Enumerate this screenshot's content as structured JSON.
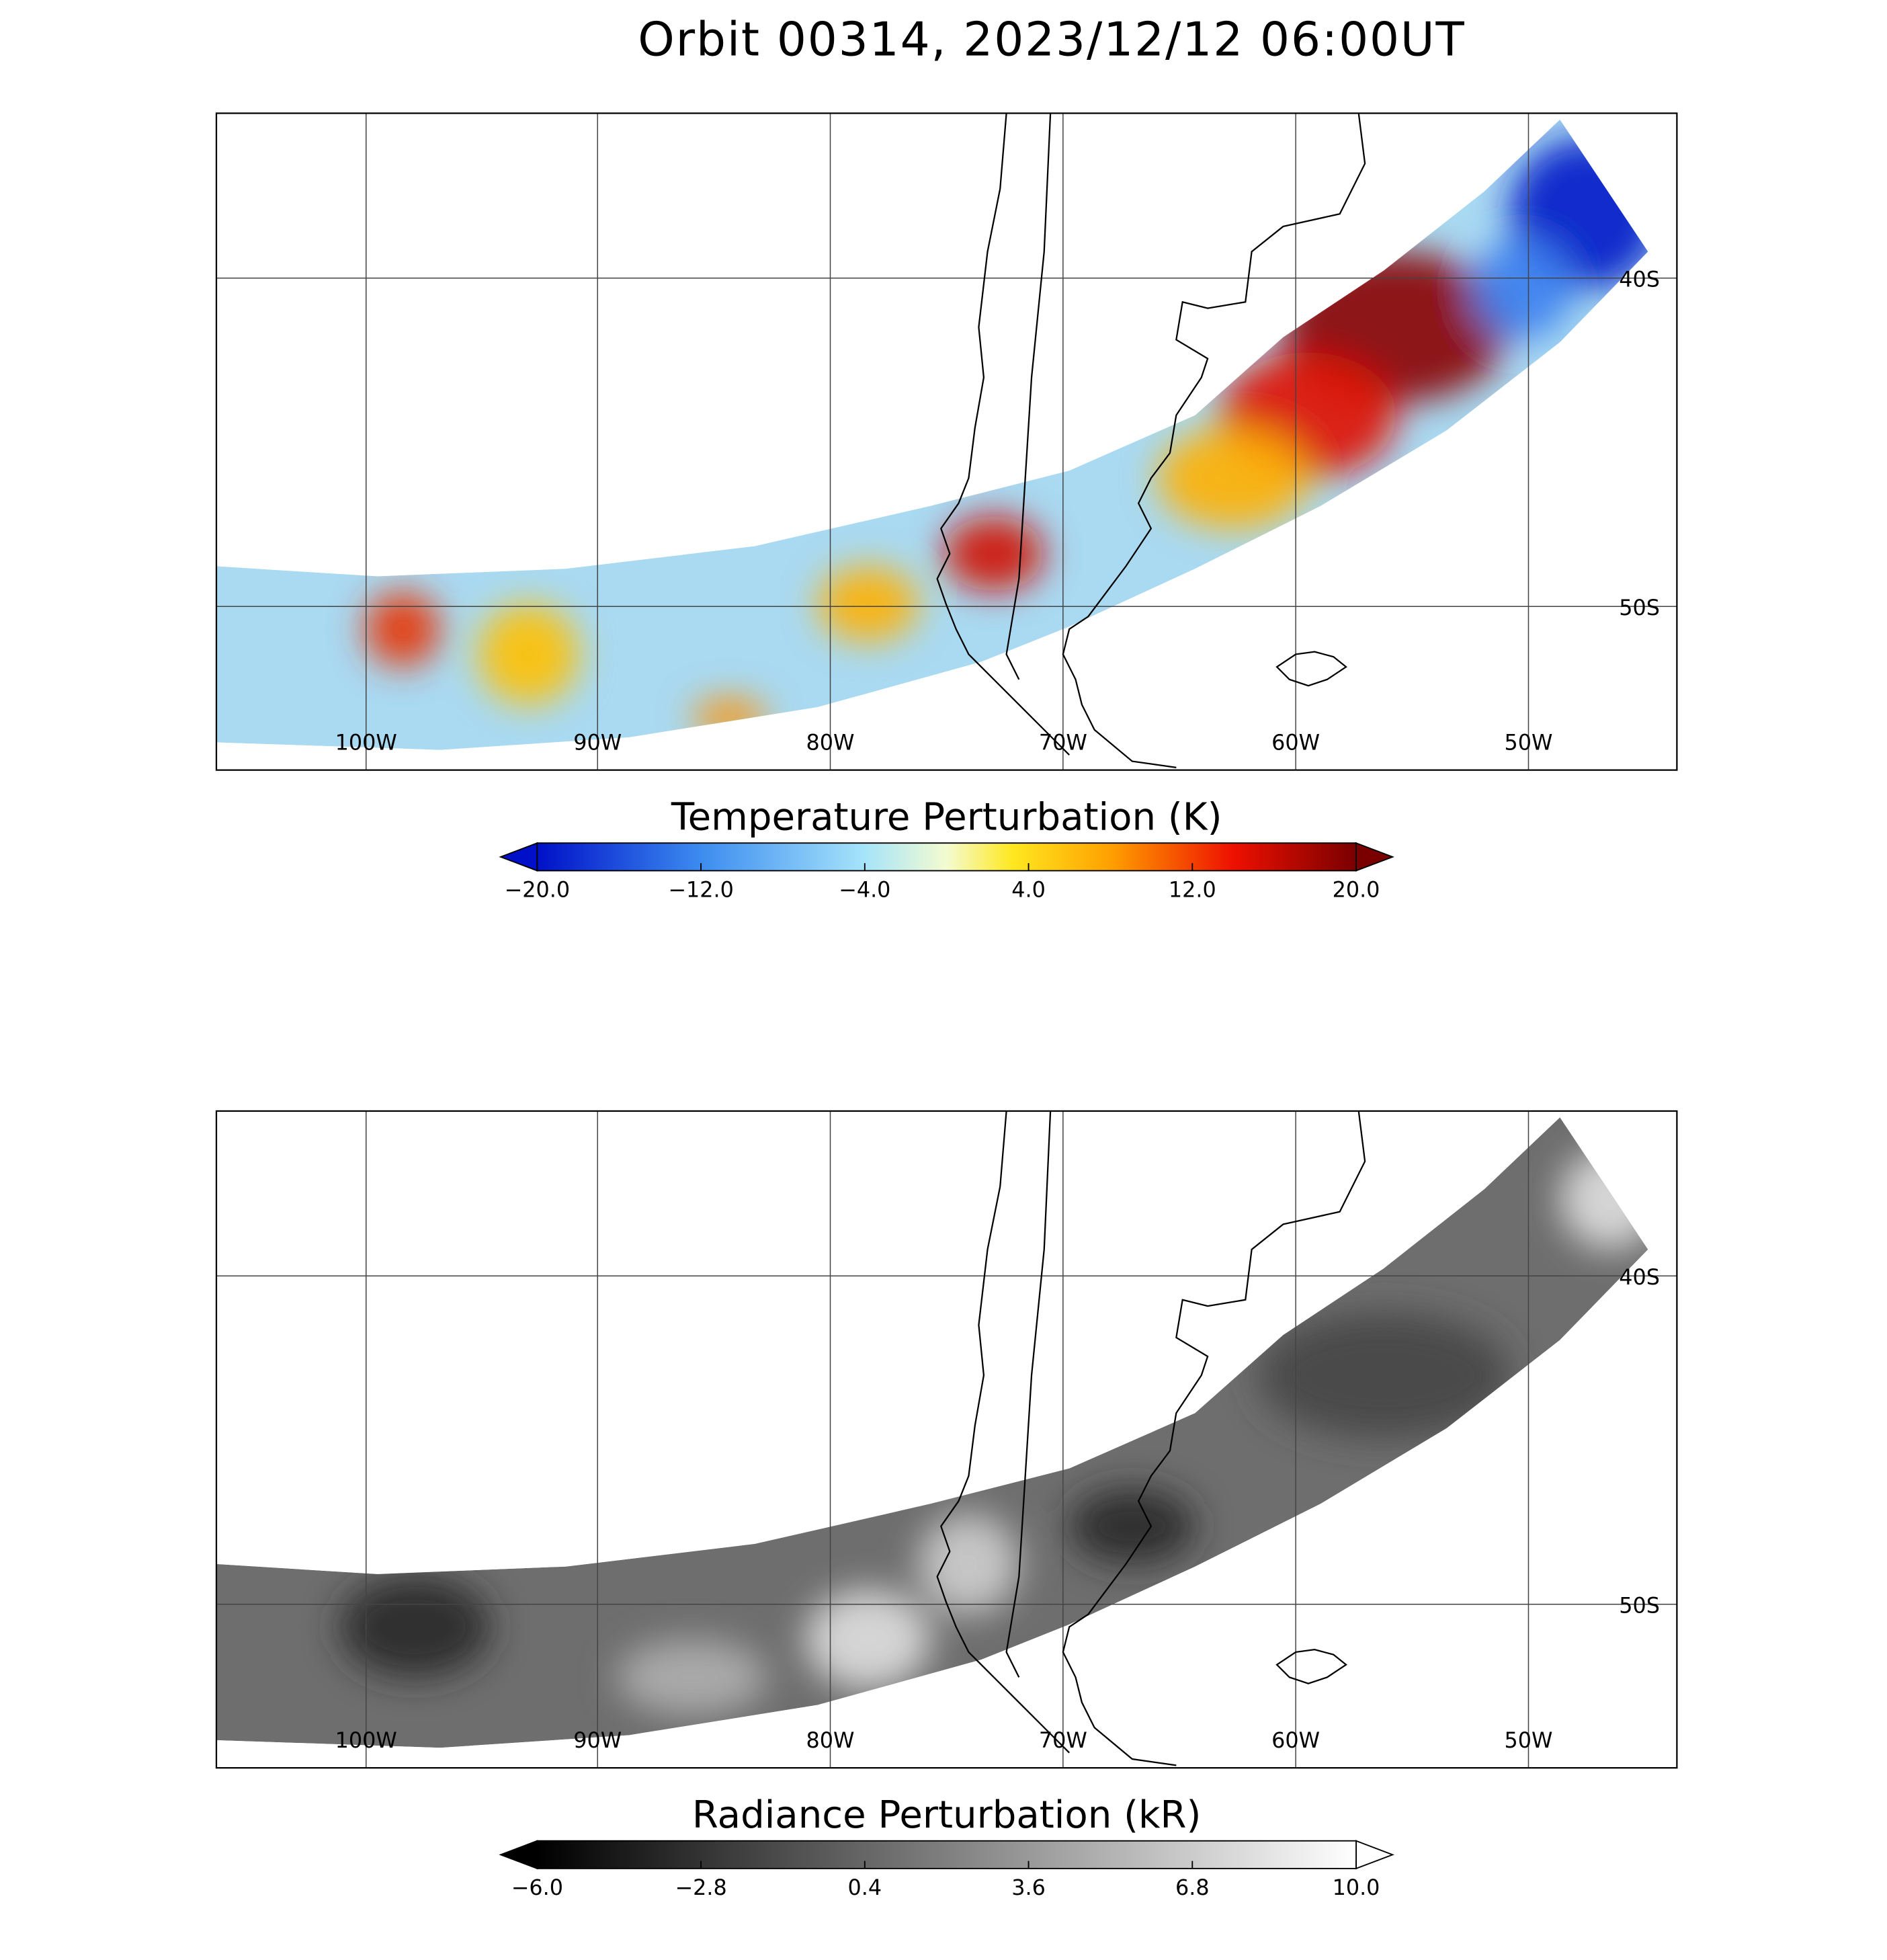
{
  "title": "Orbit 00314, 2023/12/12 06:00UT",
  "panels": [
    {
      "lon_labels": [
        "100W",
        "90W",
        "80W",
        "70W",
        "60W",
        "50W"
      ],
      "lat_labels": [
        "40S",
        "50S"
      ],
      "colorbar": {
        "title": "Temperature Perturbation (K)",
        "ticks": [
          {
            "value": -20,
            "label": "−20.0"
          },
          {
            "value": -12,
            "label": "−12.0"
          },
          {
            "value": -4,
            "label": "−4.0"
          },
          {
            "value": 4,
            "label": "4.0"
          },
          {
            "value": 12,
            "label": "12.0"
          },
          {
            "value": 20,
            "label": "20.0"
          }
        ]
      }
    },
    {
      "lon_labels": [
        "100W",
        "90W",
        "80W",
        "70W",
        "60W",
        "50W"
      ],
      "lat_labels": [
        "40S",
        "50S"
      ],
      "colorbar": {
        "title": "Radiance Perturbation (kR)",
        "ticks": [
          {
            "value": -6,
            "label": "−6.0"
          },
          {
            "value": -2.8,
            "label": "−2.8"
          },
          {
            "value": 0.4,
            "label": "0.4"
          },
          {
            "value": 3.6,
            "label": "3.6"
          },
          {
            "value": 6.8,
            "label": "6.8"
          },
          {
            "value": 10,
            "label": "10.0"
          }
        ]
      }
    }
  ]
}
